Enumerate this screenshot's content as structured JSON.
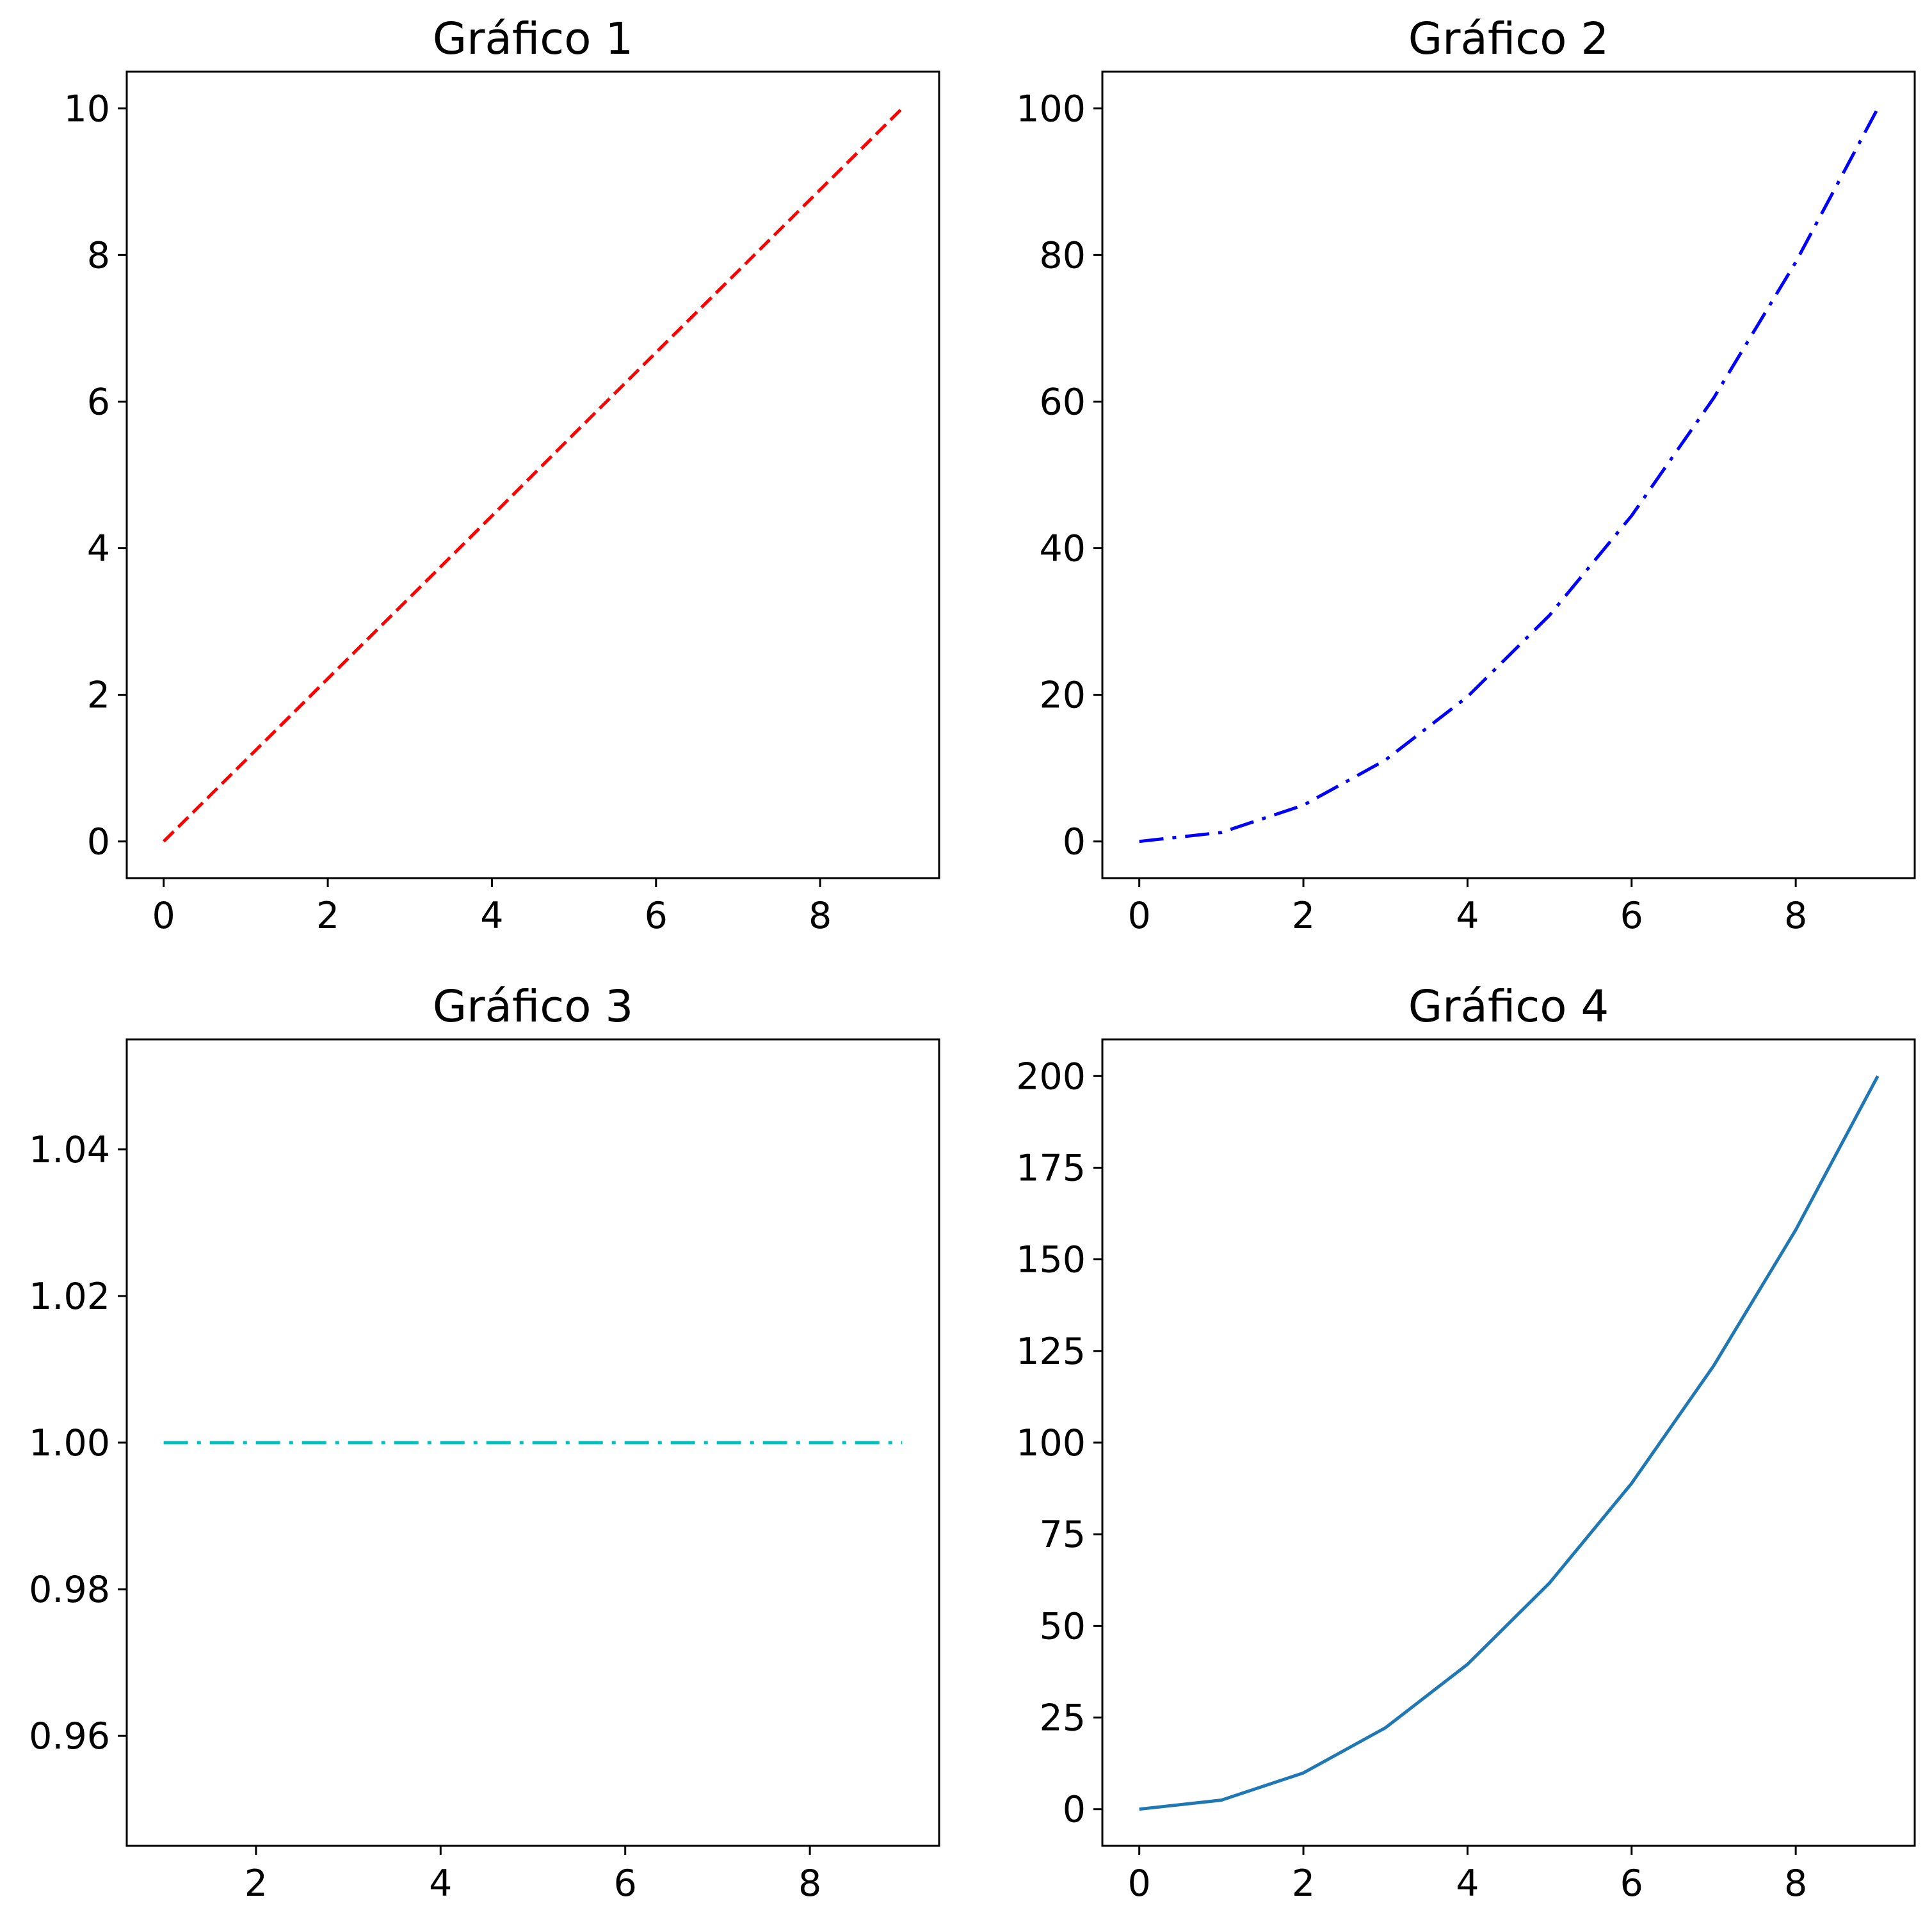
{
  "chart_data": [
    {
      "type": "line",
      "title": "Gráfico 1",
      "xlabel": "",
      "ylabel": "",
      "xlim": [
        -0.45,
        9.45
      ],
      "ylim": [
        -0.5,
        10.5
      ],
      "xticks": [
        0,
        2,
        4,
        6,
        8
      ],
      "xtick_labels": [
        "0",
        "2",
        "4",
        "6",
        "8"
      ],
      "yticks": [
        0,
        2,
        4,
        6,
        8,
        10
      ],
      "ytick_labels": [
        "0",
        "2",
        "4",
        "6",
        "8",
        "10"
      ],
      "grid": false,
      "series": [
        {
          "x": [
            0,
            1,
            2,
            3,
            4,
            5,
            6,
            7,
            8,
            9
          ],
          "y": [
            0,
            1.11,
            2.22,
            3.33,
            4.44,
            5.56,
            6.67,
            7.78,
            8.89,
            10
          ],
          "color": "#ff0000",
          "linestyle": "dashed"
        }
      ]
    },
    {
      "type": "line",
      "title": "Gráfico 2",
      "xlabel": "",
      "ylabel": "",
      "xlim": [
        -0.45,
        9.45
      ],
      "ylim": [
        -5,
        105
      ],
      "xticks": [
        0,
        2,
        4,
        6,
        8
      ],
      "xtick_labels": [
        "0",
        "2",
        "4",
        "6",
        "8"
      ],
      "yticks": [
        0,
        20,
        40,
        60,
        80,
        100
      ],
      "ytick_labels": [
        "0",
        "20",
        "40",
        "60",
        "80",
        "100"
      ],
      "grid": false,
      "series": [
        {
          "x": [
            0,
            1,
            2,
            3,
            4,
            5,
            6,
            7,
            8,
            9
          ],
          "y": [
            0,
            1.23,
            4.94,
            11.11,
            19.75,
            30.86,
            44.44,
            60.49,
            79.01,
            100
          ],
          "color": "#0000ff",
          "linestyle": "dashdot"
        }
      ]
    },
    {
      "type": "line",
      "title": "Gráfico 3",
      "xlabel": "",
      "ylabel": "",
      "xlim": [
        0.6,
        9.4
      ],
      "ylim": [
        0.945,
        1.055
      ],
      "xticks": [
        2,
        4,
        6,
        8
      ],
      "xtick_labels": [
        "2",
        "4",
        "6",
        "8"
      ],
      "yticks": [
        0.96,
        0.98,
        1.0,
        1.02,
        1.04
      ],
      "ytick_labels": [
        "0.96",
        "0.98",
        "1.00",
        "1.02",
        "1.04"
      ],
      "grid": false,
      "series": [
        {
          "x": [
            1,
            2,
            3,
            4,
            5,
            6,
            7,
            8,
            9
          ],
          "y": [
            1,
            1,
            1,
            1,
            1,
            1,
            1,
            1,
            1
          ],
          "color": "#00bfbf",
          "linestyle": "dashdot"
        }
      ]
    },
    {
      "type": "line",
      "title": "Gráfico 4",
      "xlabel": "",
      "ylabel": "",
      "xlim": [
        -0.45,
        9.45
      ],
      "ylim": [
        -10,
        210
      ],
      "xticks": [
        0,
        2,
        4,
        6,
        8
      ],
      "xtick_labels": [
        "0",
        "2",
        "4",
        "6",
        "8"
      ],
      "yticks": [
        0,
        25,
        50,
        75,
        100,
        125,
        150,
        175,
        200
      ],
      "ytick_labels": [
        "0",
        "25",
        "50",
        "75",
        "100",
        "125",
        "150",
        "175",
        "200"
      ],
      "grid": false,
      "series": [
        {
          "x": [
            0,
            1,
            2,
            3,
            4,
            5,
            6,
            7,
            8,
            9
          ],
          "y": [
            0,
            2.47,
            9.88,
            22.22,
            39.51,
            61.73,
            88.89,
            120.99,
            158.02,
            200
          ],
          "color": "#1f77b4",
          "linestyle": "solid"
        }
      ]
    }
  ]
}
